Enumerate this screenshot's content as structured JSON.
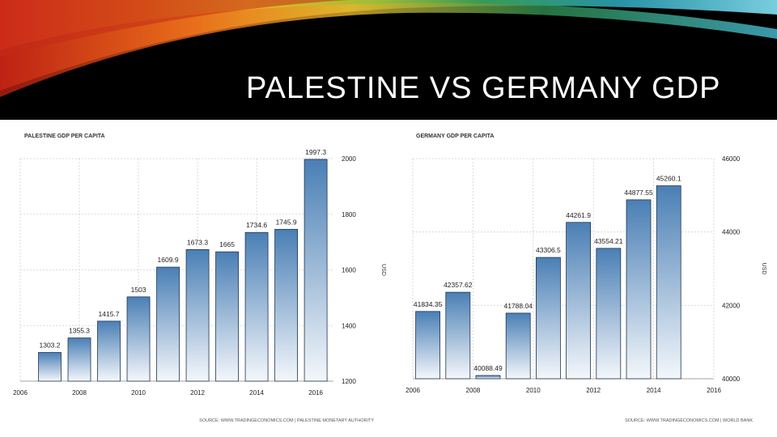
{
  "slide": {
    "title": "PALESTINE VS GERMANY GDP"
  },
  "chart_data": [
    {
      "type": "bar",
      "title": "PALESTINE GDP PER CAPITA",
      "unit": "USD",
      "source": "SOURCE: WWW.TRADINGECONOMICS.COM | PALESTINE MONETARY AUTHORITY",
      "x": [
        2007,
        2008,
        2009,
        2010,
        2011,
        2012,
        2013,
        2014,
        2015,
        2016
      ],
      "values": [
        1303.2,
        1355.3,
        1415.7,
        1503,
        1609.9,
        1673.3,
        1665,
        1734.6,
        1745.9,
        1997.3
      ],
      "labels": [
        "1303.2",
        "1355.3",
        "1415.7",
        "1503",
        "1609.9",
        "1673.3",
        "1665",
        "1734.6",
        "1745.9",
        "1997.3"
      ],
      "xticks": [
        2006,
        2008,
        2010,
        2012,
        2014,
        2016
      ],
      "yticks": [
        1200,
        1400,
        1600,
        1800,
        2000
      ],
      "ylim": [
        1200,
        2000
      ],
      "xlim": [
        2006,
        2016.6
      ],
      "grid": true,
      "color": "#4a7fb5"
    },
    {
      "type": "bar",
      "title": "GERMANY GDP PER CAPITA",
      "unit": "USD",
      "source": "SOURCE: WWW.TRADINGECONOMICS.COM | WORLD BANK",
      "x": [
        2006.5,
        2007.5,
        2008.5,
        2009.5,
        2010.5,
        2011.5,
        2012.5,
        2013.5,
        2014.5
      ],
      "values": [
        41834.35,
        42357.62,
        40088.49,
        41788.04,
        43306.5,
        44261.9,
        43554.21,
        44877.55,
        45260.1
      ],
      "labels": [
        "41834.35",
        "42357.62",
        "40088.49",
        "41788.04",
        "43306.5",
        "44261.9",
        "43554.21",
        "44877.55",
        "45260.1"
      ],
      "xticks": [
        2006,
        2008,
        2010,
        2012,
        2014,
        2016
      ],
      "ytick_labels": [
        "40000",
        "42000",
        "44000",
        "46000"
      ],
      "yticks": [
        40000,
        42000,
        44000,
        46000
      ],
      "ylim": [
        40000,
        46000
      ],
      "xlim": [
        2006,
        2016
      ],
      "grid": true,
      "color": "#4a7fb5"
    }
  ]
}
